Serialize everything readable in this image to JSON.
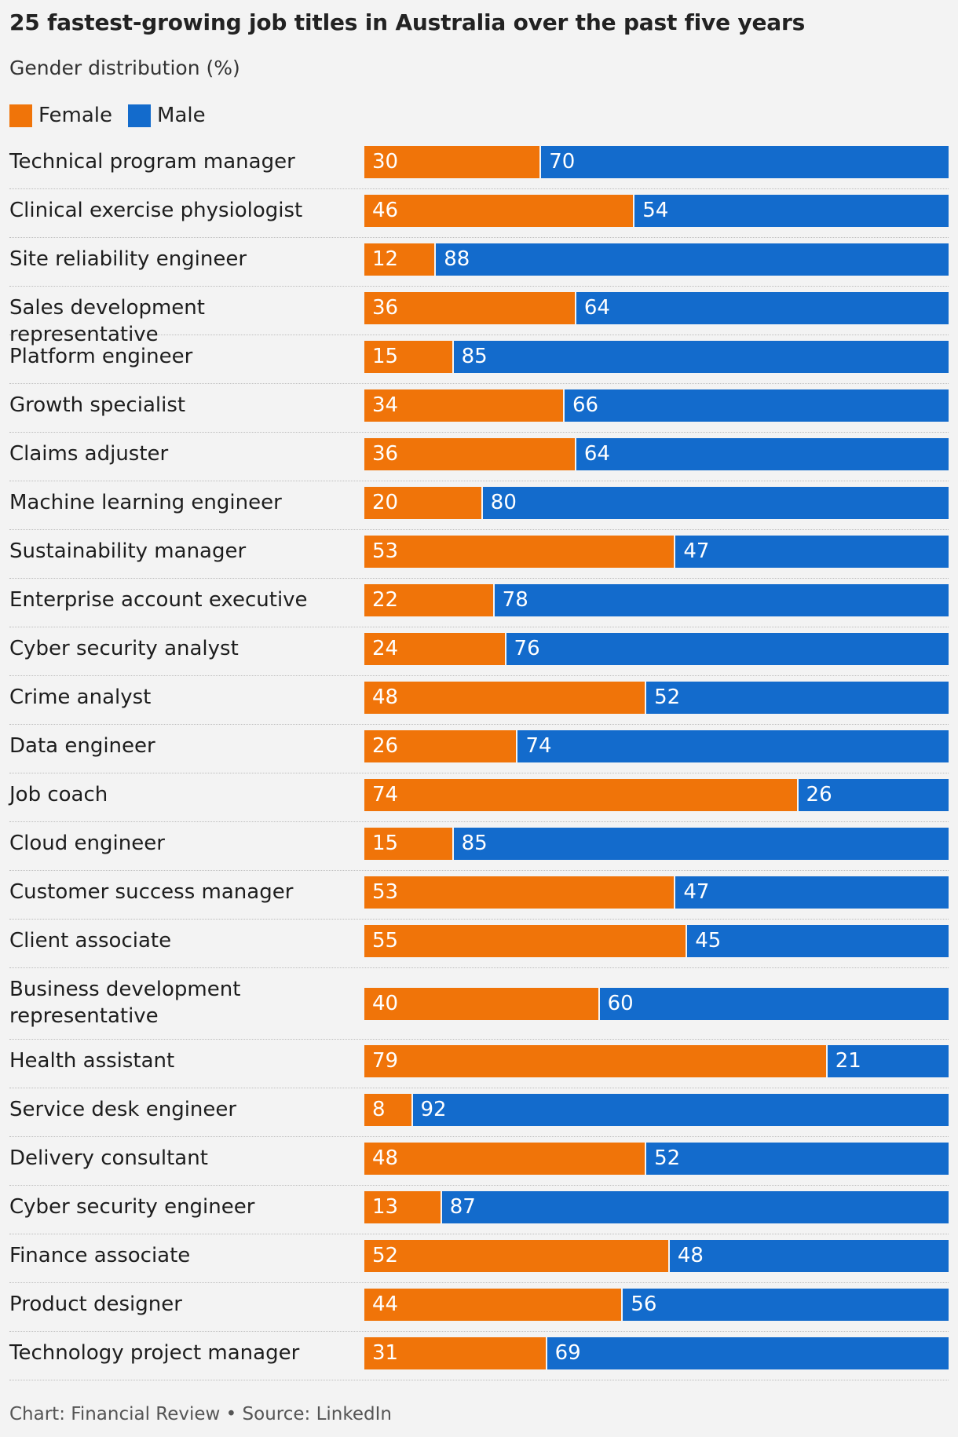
{
  "chart_data": {
    "type": "bar",
    "orientation": "horizontal",
    "stacked": true,
    "title": "25 fastest-growing job titles in Australia over the past five years",
    "subtitle": "Gender distribution (%)",
    "xlim": [
      0,
      100
    ],
    "grid": false,
    "legend_position": "top-left",
    "categories": [
      "Technical program manager",
      "Clinical exercise physiologist",
      "Site reliability engineer",
      "Sales development representative",
      "Platform engineer",
      "Growth specialist",
      "Claims adjuster",
      "Machine learning engineer",
      "Sustainability manager",
      "Enterprise account executive",
      "Cyber security analyst",
      "Crime analyst",
      "Data engineer",
      "Job coach",
      "Cloud engineer",
      "Customer success manager",
      "Client associate",
      "Business development representative",
      "Health assistant",
      "Service desk engineer",
      "Delivery consultant",
      "Cyber security engineer",
      "Finance associate",
      "Product designer",
      "Technology project manager"
    ],
    "series": [
      {
        "name": "Female",
        "color": "#f07409",
        "values": [
          30,
          46,
          12,
          36,
          15,
          34,
          36,
          20,
          53,
          22,
          24,
          48,
          26,
          74,
          15,
          53,
          55,
          40,
          79,
          8,
          48,
          13,
          52,
          44,
          31
        ]
      },
      {
        "name": "Male",
        "color": "#136bcc",
        "values": [
          70,
          54,
          88,
          64,
          85,
          66,
          64,
          80,
          47,
          78,
          76,
          52,
          74,
          26,
          85,
          47,
          45,
          60,
          21,
          92,
          52,
          87,
          48,
          56,
          69
        ]
      }
    ]
  },
  "footer": "Chart: Financial Review • Source: LinkedIn"
}
